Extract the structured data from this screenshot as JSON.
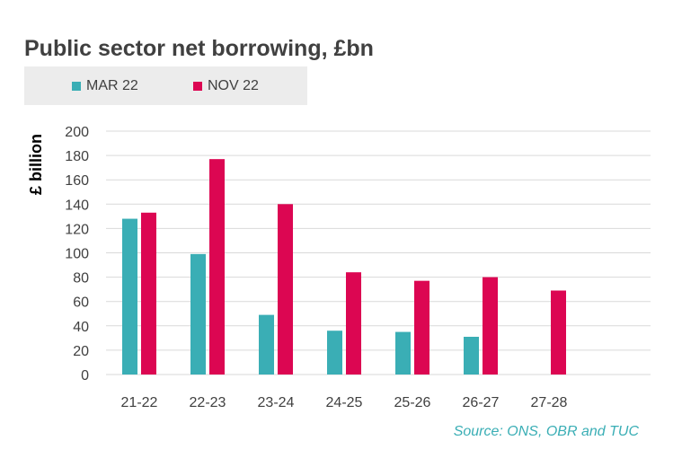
{
  "chart_data": {
    "type": "bar",
    "title": "Public sector net borrowing, £bn",
    "ylabel": "£ billion",
    "xlabel": "",
    "categories": [
      "21-22",
      "22-23",
      "23-24",
      "24-25",
      "25-26",
      "26-27",
      "27-28"
    ],
    "series": [
      {
        "name": "MAR 22",
        "color": "#3aaeb5",
        "values": [
          128,
          99,
          49,
          36,
          35,
          31,
          null
        ]
      },
      {
        "name": "NOV 22",
        "color": "#dc0652",
        "values": [
          133,
          177,
          140,
          84,
          77,
          80,
          69
        ]
      }
    ],
    "ylim": [
      0,
      200
    ],
    "yticks": [
      0,
      20,
      40,
      60,
      80,
      100,
      120,
      140,
      160,
      180,
      200
    ],
    "grid": true,
    "legend_position": "top-left",
    "source": "Source: ONS, OBR and TUC"
  }
}
